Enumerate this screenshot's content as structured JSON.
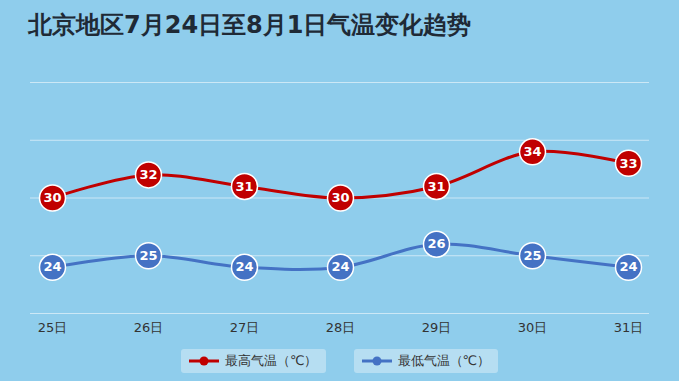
{
  "chart_data": {
    "type": "line",
    "title": "北京地区7月24日至8月1日气温变化趋势",
    "categories": [
      "25日",
      "26日",
      "27日",
      "28日",
      "29日",
      "30日",
      "31日"
    ],
    "series": [
      {
        "name": "最高气温（℃）",
        "color": "#c00000",
        "marker": "circle",
        "values": [
          30,
          32,
          31,
          30,
          31,
          34,
          33
        ]
      },
      {
        "name": "最低气温（℃）",
        "color": "#4472c4",
        "marker": "circle",
        "values": [
          24,
          25,
          24,
          24,
          26,
          25,
          24
        ]
      }
    ],
    "ylim": [
      20,
      40
    ],
    "yticks": [
      20,
      25,
      30,
      35,
      40
    ],
    "grid": true,
    "data_labels": true,
    "tick_labels": "x",
    "legend": "bottom"
  }
}
